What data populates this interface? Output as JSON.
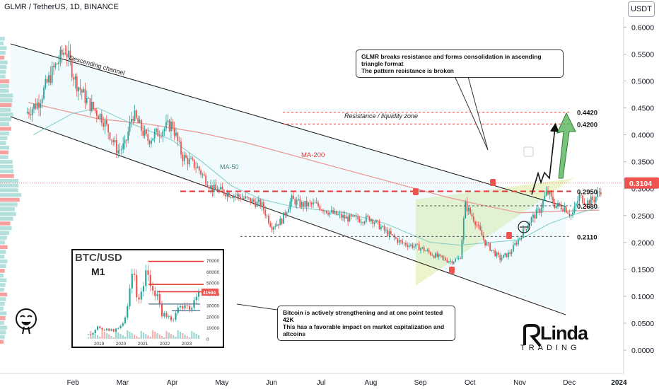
{
  "header": {
    "title": "GLMR / TetherUS, 1D, BINANCE",
    "currency": "USDT"
  },
  "chart_data": {
    "type": "candlestick",
    "symbol": "GLMR / TetherUS",
    "interval": "1D",
    "exchange": "BINANCE",
    "y_ticks": [
      "0.6000",
      "0.5500",
      "0.5000",
      "0.4500",
      "0.4000",
      "0.3500",
      "0.3000",
      "0.2500",
      "0.2000",
      "0.1500",
      "0.1000",
      "0.0500",
      "0.0000"
    ],
    "ylim": [
      -0.03,
      0.63
    ],
    "x_ticks": [
      {
        "label": "Feb",
        "month": 1
      },
      {
        "label": "Mar",
        "month": 2
      },
      {
        "label": "Apr",
        "month": 3
      },
      {
        "label": "May",
        "month": 4
      },
      {
        "label": "Jun",
        "month": 5
      },
      {
        "label": "Jul",
        "month": 6
      },
      {
        "label": "Aug",
        "month": 7
      },
      {
        "label": "Sep",
        "month": 8
      },
      {
        "label": "Oct",
        "month": 9
      },
      {
        "label": "Nov",
        "month": 10
      },
      {
        "label": "Dec",
        "month": 11
      },
      {
        "label": "2024",
        "month": 12
      },
      {
        "label": "Feb",
        "month": 13
      }
    ],
    "last_price": "0.3104",
    "last_price_value": 0.3104,
    "price_path": [
      [
        0.05,
        0.44
      ],
      [
        0.3,
        0.46
      ],
      [
        0.6,
        0.52
      ],
      [
        0.85,
        0.56
      ],
      [
        1.05,
        0.5
      ],
      [
        1.3,
        0.46
      ],
      [
        1.6,
        0.43
      ],
      [
        1.9,
        0.37
      ],
      [
        2.05,
        0.38
      ],
      [
        2.2,
        0.44
      ],
      [
        2.5,
        0.39
      ],
      [
        2.8,
        0.41
      ],
      [
        3.0,
        0.42
      ],
      [
        3.2,
        0.36
      ],
      [
        3.5,
        0.34
      ],
      [
        3.8,
        0.3
      ],
      [
        4.2,
        0.29
      ],
      [
        4.5,
        0.28
      ],
      [
        4.8,
        0.27
      ],
      [
        5.0,
        0.23
      ],
      [
        5.2,
        0.24
      ],
      [
        5.4,
        0.28
      ],
      [
        5.6,
        0.27
      ],
      [
        5.9,
        0.27
      ],
      [
        6.2,
        0.255
      ],
      [
        6.5,
        0.245
      ],
      [
        6.8,
        0.243
      ],
      [
        7.0,
        0.245
      ],
      [
        7.3,
        0.22
      ],
      [
        7.6,
        0.2
      ],
      [
        8.0,
        0.19
      ],
      [
        8.3,
        0.175
      ],
      [
        8.6,
        0.165
      ],
      [
        8.8,
        0.17
      ],
      [
        8.9,
        0.27
      ],
      [
        9.1,
        0.24
      ],
      [
        9.3,
        0.2
      ],
      [
        9.6,
        0.17
      ],
      [
        9.8,
        0.18
      ],
      [
        10.0,
        0.21
      ],
      [
        10.2,
        0.24
      ],
      [
        10.4,
        0.26
      ],
      [
        10.55,
        0.295
      ],
      [
        10.7,
        0.27
      ],
      [
        10.9,
        0.265
      ],
      [
        11.05,
        0.25
      ],
      [
        11.2,
        0.285
      ],
      [
        11.35,
        0.275
      ],
      [
        11.5,
        0.28
      ],
      [
        11.65,
        0.3
      ]
    ],
    "levels": [
      {
        "label": "0.4420",
        "value": 0.442,
        "color": "#e53935",
        "style": "dashed"
      },
      {
        "label": "0.4200",
        "value": 0.42,
        "color": "#e53935",
        "style": "dashed"
      },
      {
        "label": "0.2950",
        "value": 0.295,
        "color": "#e53935",
        "style": "bold-dashed"
      },
      {
        "label": "0.2680",
        "value": 0.268,
        "color": "#555555",
        "style": "dashed"
      },
      {
        "label": "0.2110",
        "value": 0.211,
        "color": "#555555",
        "style": "dashed"
      }
    ],
    "annotations": {
      "channel": "Descending channel",
      "ma200": "MA-200",
      "ma50": "MA-50",
      "zone": "Resistance / liquidity zone"
    },
    "up_color": "#26a69a",
    "down_color": "#ef5350",
    "inset": {
      "title": "BTC/USD",
      "interval": "M1",
      "y_ticks": [
        "70000",
        "60000",
        "50000",
        "40000",
        "30000",
        "20000",
        "10000",
        "0"
      ],
      "x_ticks": [
        "2019",
        "2020",
        "2021",
        "2022",
        "2023"
      ],
      "last": "41594"
    }
  },
  "notes": {
    "top": [
      "GLMR breaks resistance and forms consolidation in ascending triangle format",
      "The pattern resistance is broken"
    ],
    "bottom": [
      "Bitcoin is actively strengthening and at one point tested 42K",
      "This has a favorable impact on market capitalization and altcoins"
    ]
  },
  "logo": {
    "name": "Linda",
    "sub": "TRADING"
  }
}
